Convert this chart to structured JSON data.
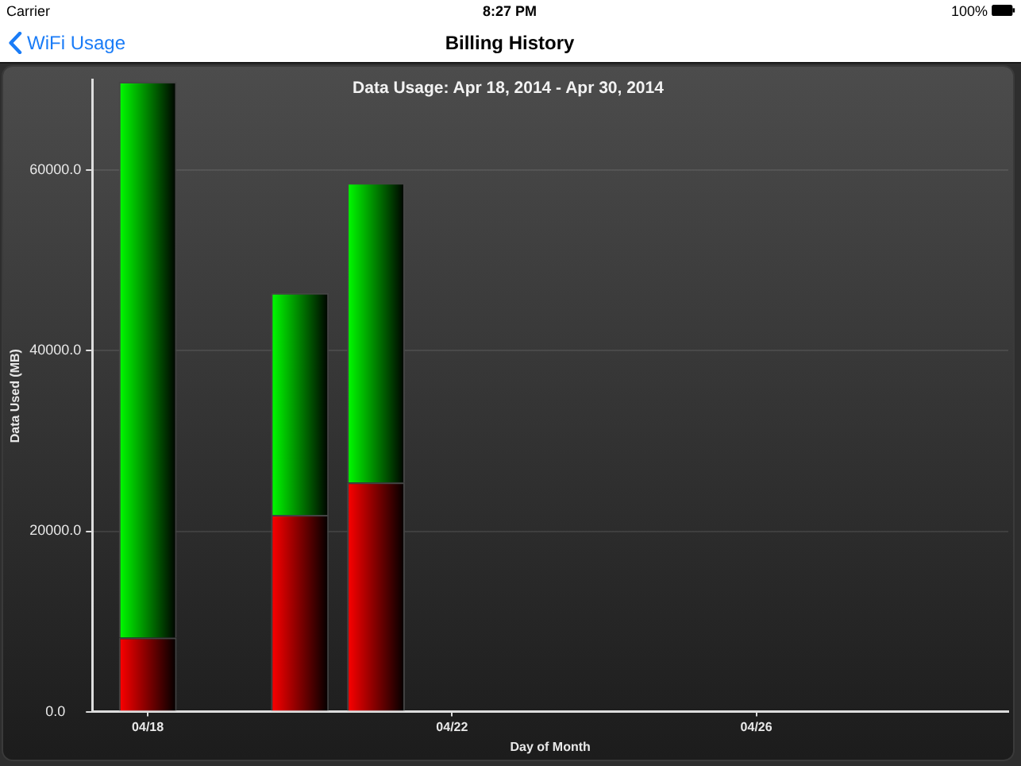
{
  "chart_data": {
    "type": "bar",
    "title": "Data Usage: Apr 18, 2014 - Apr 30, 2014",
    "xlabel": "Day of Month",
    "ylabel": "Data Used (MB)",
    "annotations": [
      "Carrier",
      "8:27 PM",
      "100%",
      "WiFi Usage",
      "Billing History"
    ],
    "x": [
      "2014-04-18",
      "2014-04-20",
      "2014-04-21"
    ],
    "series": [
      {
        "color": "#ff0000",
        "values": [
          8200,
          21800,
          25400
        ]
      },
      {
        "color": "#00ff00",
        "values": [
          61600,
          24600,
          33200
        ]
      }
    ],
    "stacked": true,
    "xlim": [
      "2014-04-17T06:30",
      "2014-04-29T07:30"
    ],
    "xticks": [
      {
        "value": "2014-04-18",
        "label": "04/18"
      },
      {
        "value": "2014-04-22",
        "label": "04/22"
      },
      {
        "value": "2014-04-26",
        "label": "04/26"
      }
    ],
    "ylim": [
      0,
      70000
    ],
    "yticks": [
      {
        "value": 0,
        "label": "0.0"
      },
      {
        "value": 20000,
        "label": "20000.0"
      },
      {
        "value": 40000,
        "label": "40000.0"
      },
      {
        "value": 60000,
        "label": "60000.0"
      }
    ],
    "grid": "y"
  }
}
